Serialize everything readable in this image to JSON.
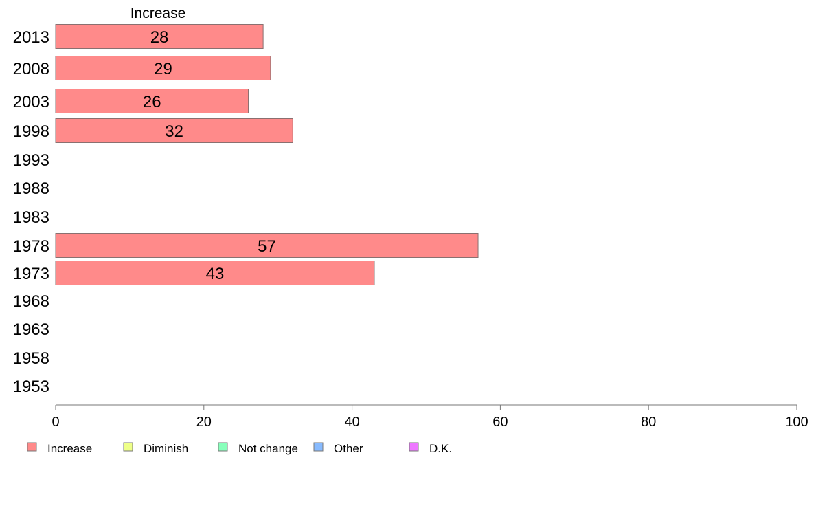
{
  "chart_data": {
    "type": "bar",
    "orientation": "horizontal",
    "title": "Increase",
    "categories": [
      "2013",
      "2008",
      "2003",
      "1998",
      "1993",
      "1988",
      "1983",
      "1978",
      "1973",
      "1968",
      "1963",
      "1958",
      "1953"
    ],
    "series": [
      {
        "name": "Increase",
        "color": "#ff8a8a",
        "values": [
          28,
          29,
          26,
          32,
          null,
          null,
          null,
          57,
          43,
          null,
          null,
          null,
          null
        ]
      }
    ],
    "xlim": [
      0,
      100
    ],
    "xticks": [
      0,
      20,
      40,
      60,
      80,
      100
    ],
    "grid": false,
    "legend": {
      "placement": "bottom-left",
      "items": [
        {
          "label": "Increase",
          "color": "#ff8a8a"
        },
        {
          "label": "Diminish",
          "color": "#eeff88"
        },
        {
          "label": "Not change",
          "color": "#88ffbb"
        },
        {
          "label": "Other",
          "color": "#88bbff"
        },
        {
          "label": "D.K.",
          "color": "#ee77ff"
        }
      ]
    }
  }
}
